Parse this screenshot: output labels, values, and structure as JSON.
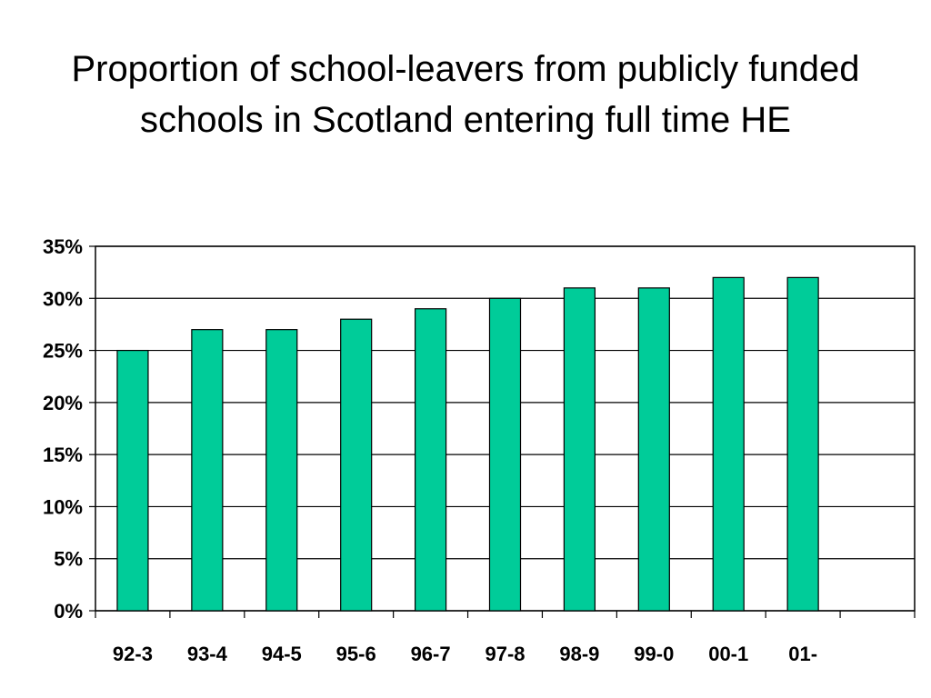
{
  "title": {
    "line1": "Proportion of school-leavers from publicly funded",
    "line2": "schools in Scotland entering full time HE"
  },
  "colors": {
    "bar": "#00CC99",
    "grid": "#000000",
    "background": "#FFFFFF"
  },
  "chart_data": {
    "type": "bar",
    "title": "Proportion of school-leavers from publicly funded schools in Scotland entering full time HE",
    "xlabel": "",
    "ylabel": "",
    "categories": [
      "92-3",
      "93-4",
      "94-5",
      "95-6",
      "96-7",
      "97-8",
      "98-9",
      "99-0",
      "00-1",
      "01-",
      ""
    ],
    "values": [
      25,
      27,
      27,
      28,
      29,
      30,
      31,
      31,
      32,
      32,
      null
    ],
    "ylim": [
      0,
      35
    ],
    "yticks": [
      0,
      5,
      10,
      15,
      20,
      25,
      30,
      35
    ],
    "ytick_labels": [
      "0%",
      "5%",
      "10%",
      "15%",
      "20%",
      "25%",
      "30%",
      "35%"
    ],
    "grid": true,
    "legend": "none"
  }
}
